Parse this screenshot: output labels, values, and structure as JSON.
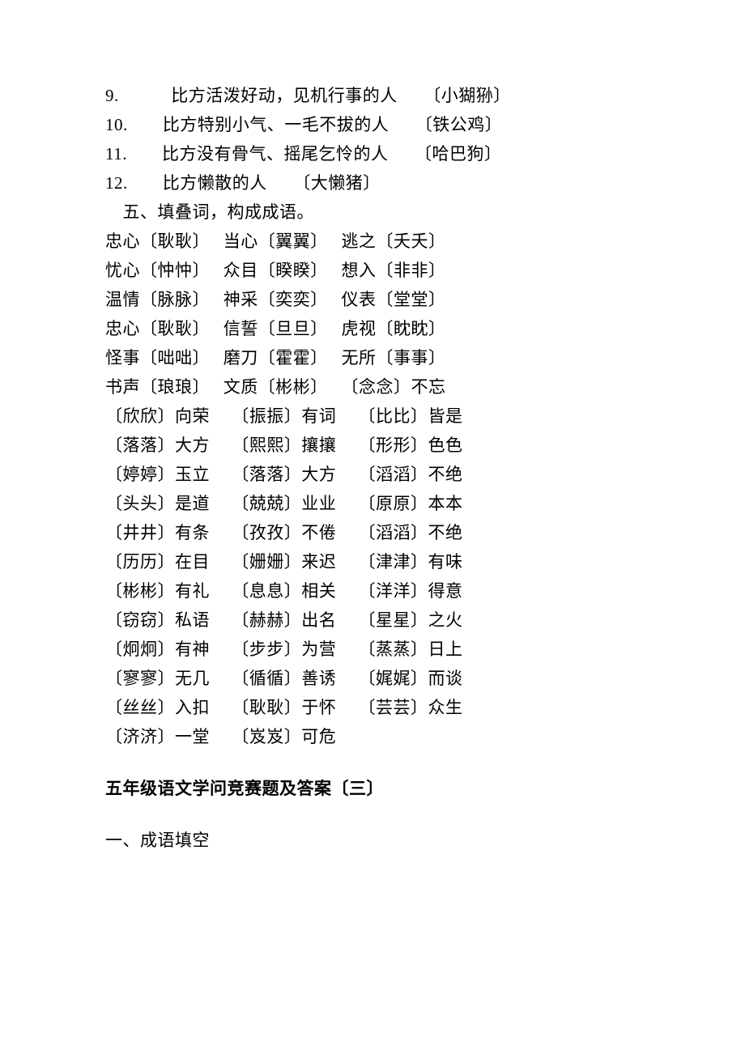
{
  "numbered_items": [
    {
      "num": "9.",
      "text": "比方活泼好动，见机行事的人　　〔小猢狲〕",
      "indent": "  "
    },
    {
      "num": "10.",
      "text": "比方特别小气、一毛不拔的人　　〔铁公鸡〕",
      "indent": ""
    },
    {
      "num": "11.",
      "text": "比方没有骨气、摇尾乞怜的人　　〔哈巴狗〕",
      "indent": ""
    },
    {
      "num": "12.",
      "text": "比方懒散的人　　〔大懒猪〕",
      "indent": ""
    }
  ],
  "section5_title": "　五、填叠词，构成成语。",
  "idiom_rows_a": [
    "忠心〔耿耿〕　 当心〔翼翼〕　 逃之〔夭夭〕",
    "忧心〔忡忡〕　 众目〔睽睽〕　 想入〔非非〕",
    "温情〔脉脉〕　 神采〔奕奕〕　 仪表〔堂堂〕",
    "忠心〔耿耿〕　 信誓〔旦旦〕　 虎视〔眈眈〕",
    "怪事〔咄咄〕　 磨刀〔霍霍〕　 无所〔事事〕",
    "书声〔琅琅〕　 文质〔彬彬〕　 〔念念〕不忘",
    "〔欣欣〕向荣　 〔振振〕有词　 〔比比〕皆是",
    "〔落落〕大方　 〔熙熙〕攘攘　 〔形形〕色色",
    "〔婷婷〕玉立　 〔落落〕大方　 〔滔滔〕不绝",
    "〔头头〕是道　 〔兢兢〕业业　 〔原原〕本本",
    "〔井井〕有条　 〔孜孜〕不倦　 〔滔滔〕不绝",
    "〔历历〕在目　 〔姗姗〕来迟　 〔津津〕有味",
    "〔彬彬〕有礼　 〔息息〕相关　 〔洋洋〕得意",
    "〔窃窃〕私语　 〔赫赫〕出名　 〔星星〕之火",
    "〔炯炯〕有神　 〔步步〕为营　 〔蒸蒸〕日上",
    "〔寥寥〕无几　 〔循循〕善诱　 〔娓娓〕而谈",
    "〔丝丝〕入扣　 〔耿耿〕于怀　 〔芸芸〕众生",
    "〔济济〕一堂　 〔岌岌〕可危"
  ],
  "heading": "五年级语文学问竞赛题及答案〔三〕",
  "sub_heading": "一、成语填空"
}
